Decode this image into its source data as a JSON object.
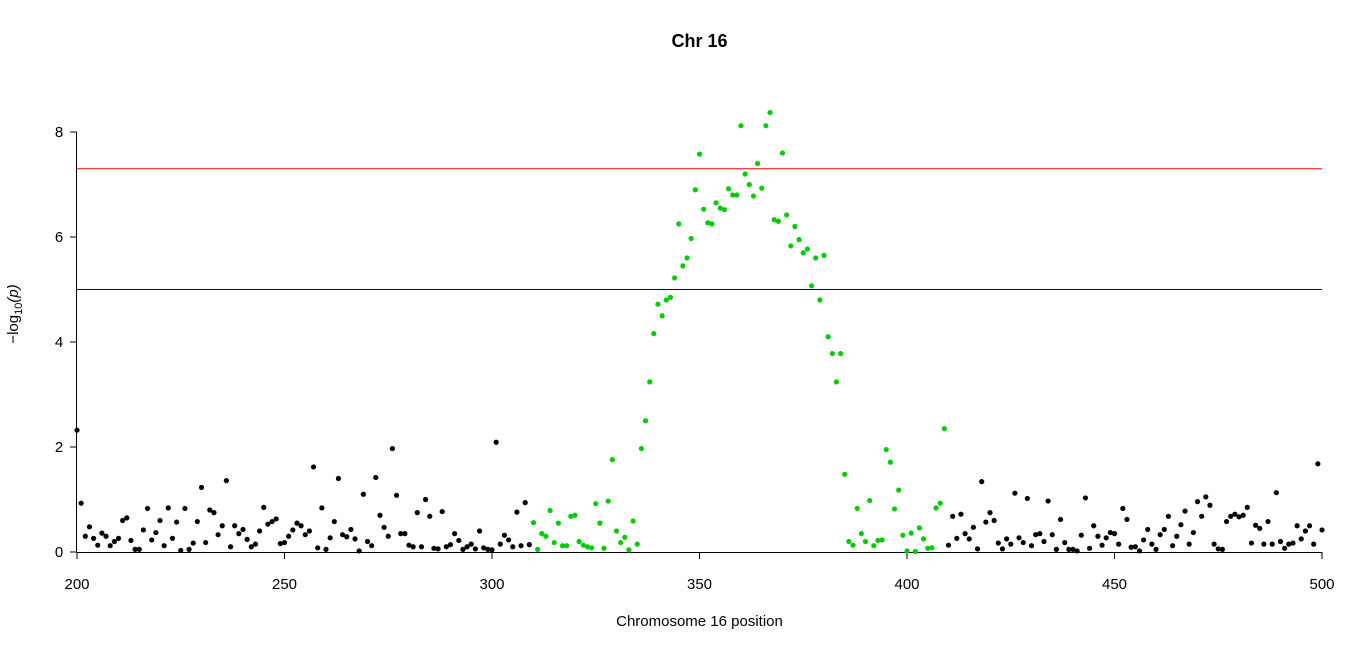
{
  "chart_data": {
    "type": "scatter",
    "title": "Chr 16",
    "xlabel": "Chromosome 16 position",
    "ylabel_main": "−log",
    "ylabel_sub": "10",
    "ylabel_tail": "(p)",
    "xlim": [
      200,
      500
    ],
    "ylim": [
      0,
      8
    ],
    "x_ticks": [
      200,
      250,
      300,
      350,
      400,
      450,
      500
    ],
    "y_ticks": [
      0,
      2,
      4,
      6,
      8
    ],
    "grid": false,
    "threshold_lines": [
      {
        "value": 7.3,
        "color": "#ff0000"
      },
      {
        "value": 5.0,
        "color": "#000080"
      }
    ],
    "colors": {
      "background_point": "#000000",
      "highlight_point": "#00cc00"
    },
    "series": [
      {
        "color": "#000000",
        "points": [
          [
            200,
            2.32
          ],
          [
            201,
            0.93
          ],
          [
            202,
            0.3
          ],
          [
            203,
            0.48
          ],
          [
            204,
            0.26
          ],
          [
            205,
            0.13
          ],
          [
            206,
            0.36
          ],
          [
            207,
            0.3
          ],
          [
            208,
            0.12
          ],
          [
            209,
            0.2
          ],
          [
            210,
            0.26
          ],
          [
            211,
            0.6
          ],
          [
            212,
            0.65
          ],
          [
            213,
            0.22
          ],
          [
            214,
            0.05
          ],
          [
            215,
            0.05
          ],
          [
            216,
            0.42
          ],
          [
            217,
            0.83
          ],
          [
            218,
            0.23
          ],
          [
            219,
            0.37
          ],
          [
            220,
            0.6
          ],
          [
            221,
            0.12
          ],
          [
            222,
            0.84
          ],
          [
            223,
            0.26
          ],
          [
            224,
            0.57
          ],
          [
            225,
            0.03
          ],
          [
            226,
            0.83
          ],
          [
            227,
            0.05
          ],
          [
            228,
            0.17
          ],
          [
            229,
            0.58
          ],
          [
            230,
            1.23
          ],
          [
            231,
            0.18
          ],
          [
            232,
            0.8
          ],
          [
            233,
            0.75
          ],
          [
            234,
            0.33
          ],
          [
            235,
            0.5
          ],
          [
            236,
            1.36
          ],
          [
            237,
            0.1
          ],
          [
            238,
            0.5
          ],
          [
            239,
            0.35
          ],
          [
            240,
            0.43
          ],
          [
            241,
            0.24
          ],
          [
            242,
            0.1
          ],
          [
            243,
            0.15
          ],
          [
            244,
            0.4
          ],
          [
            245,
            0.85
          ],
          [
            246,
            0.53
          ],
          [
            247,
            0.58
          ],
          [
            248,
            0.63
          ],
          [
            249,
            0.16
          ],
          [
            250,
            0.18
          ],
          [
            251,
            0.3
          ],
          [
            252,
            0.42
          ],
          [
            253,
            0.55
          ],
          [
            254,
            0.5
          ],
          [
            255,
            0.33
          ],
          [
            256,
            0.4
          ],
          [
            257,
            1.62
          ],
          [
            258,
            0.08
          ],
          [
            259,
            0.84
          ],
          [
            260,
            0.05
          ],
          [
            261,
            0.27
          ],
          [
            262,
            0.58
          ],
          [
            263,
            1.4
          ],
          [
            264,
            0.33
          ],
          [
            265,
            0.29
          ],
          [
            266,
            0.43
          ],
          [
            267,
            0.25
          ],
          [
            268,
            0.02
          ],
          [
            269,
            1.1
          ],
          [
            270,
            0.2
          ],
          [
            271,
            0.12
          ],
          [
            272,
            1.42
          ],
          [
            273,
            0.7
          ],
          [
            274,
            0.47
          ],
          [
            275,
            0.3
          ],
          [
            276,
            1.97
          ],
          [
            277,
            1.08
          ],
          [
            278,
            0.35
          ],
          [
            279,
            0.35
          ],
          [
            280,
            0.13
          ],
          [
            281,
            0.1
          ],
          [
            282,
            0.75
          ],
          [
            283,
            0.1
          ],
          [
            284,
            1.0
          ],
          [
            285,
            0.68
          ],
          [
            286,
            0.07
          ],
          [
            287,
            0.06
          ],
          [
            288,
            0.77
          ],
          [
            289,
            0.1
          ],
          [
            290,
            0.14
          ],
          [
            291,
            0.35
          ],
          [
            292,
            0.22
          ],
          [
            293,
            0.05
          ],
          [
            294,
            0.1
          ],
          [
            295,
            0.15
          ],
          [
            296,
            0.06
          ],
          [
            297,
            0.4
          ],
          [
            298,
            0.08
          ],
          [
            299,
            0.05
          ],
          [
            300,
            0.04
          ],
          [
            301,
            2.09
          ],
          [
            302,
            0.15
          ],
          [
            303,
            0.32
          ],
          [
            304,
            0.23
          ],
          [
            305,
            0.1
          ],
          [
            306,
            0.76
          ],
          [
            307,
            0.12
          ],
          [
            308,
            0.94
          ],
          [
            309,
            0.14
          ],
          [
            410,
            0.13
          ],
          [
            411,
            0.68
          ],
          [
            412,
            0.26
          ],
          [
            413,
            0.72
          ],
          [
            414,
            0.35
          ],
          [
            415,
            0.25
          ],
          [
            416,
            0.47
          ],
          [
            417,
            0.06
          ],
          [
            418,
            1.34
          ],
          [
            419,
            0.57
          ],
          [
            420,
            0.75
          ],
          [
            421,
            0.6
          ],
          [
            422,
            0.17
          ],
          [
            423,
            0.06
          ],
          [
            424,
            0.25
          ],
          [
            425,
            0.15
          ],
          [
            426,
            1.12
          ],
          [
            427,
            0.27
          ],
          [
            428,
            0.18
          ],
          [
            429,
            1.02
          ],
          [
            430,
            0.12
          ],
          [
            431,
            0.33
          ],
          [
            432,
            0.35
          ],
          [
            433,
            0.2
          ],
          [
            434,
            0.97
          ],
          [
            435,
            0.33
          ],
          [
            436,
            0.05
          ],
          [
            437,
            0.62
          ],
          [
            438,
            0.18
          ],
          [
            439,
            0.05
          ],
          [
            440,
            0.05
          ],
          [
            441,
            0.02
          ],
          [
            442,
            0.32
          ],
          [
            443,
            1.03
          ],
          [
            444,
            0.07
          ],
          [
            445,
            0.5
          ],
          [
            446,
            0.3
          ],
          [
            447,
            0.13
          ],
          [
            448,
            0.27
          ],
          [
            449,
            0.37
          ],
          [
            450,
            0.35
          ],
          [
            451,
            0.15
          ],
          [
            452,
            0.83
          ],
          [
            453,
            0.62
          ],
          [
            454,
            0.09
          ],
          [
            455,
            0.1
          ],
          [
            456,
            0.02
          ],
          [
            457,
            0.23
          ],
          [
            458,
            0.43
          ],
          [
            459,
            0.15
          ],
          [
            460,
            0.05
          ],
          [
            461,
            0.33
          ],
          [
            462,
            0.43
          ],
          [
            463,
            0.68
          ],
          [
            464,
            0.12
          ],
          [
            465,
            0.3
          ],
          [
            466,
            0.52
          ],
          [
            467,
            0.78
          ],
          [
            468,
            0.15
          ],
          [
            469,
            0.37
          ],
          [
            470,
            0.96
          ],
          [
            471,
            0.68
          ],
          [
            472,
            1.05
          ],
          [
            473,
            0.89
          ],
          [
            474,
            0.15
          ],
          [
            475,
            0.06
          ],
          [
            476,
            0.05
          ],
          [
            477,
            0.58
          ],
          [
            478,
            0.68
          ],
          [
            479,
            0.72
          ],
          [
            480,
            0.67
          ],
          [
            481,
            0.7
          ],
          [
            482,
            0.85
          ],
          [
            483,
            0.17
          ],
          [
            484,
            0.51
          ],
          [
            485,
            0.45
          ],
          [
            486,
            0.15
          ],
          [
            487,
            0.58
          ],
          [
            488,
            0.15
          ],
          [
            489,
            1.13
          ],
          [
            490,
            0.2
          ],
          [
            491,
            0.07
          ],
          [
            492,
            0.15
          ],
          [
            493,
            0.17
          ],
          [
            494,
            0.5
          ],
          [
            495,
            0.25
          ],
          [
            496,
            0.4
          ],
          [
            497,
            0.5
          ],
          [
            498,
            0.15
          ],
          [
            499,
            1.68
          ],
          [
            500,
            0.42
          ]
        ]
      },
      {
        "color": "#00cc00",
        "points": [
          [
            310,
            0.56
          ],
          [
            311,
            0.05
          ],
          [
            312,
            0.35
          ],
          [
            313,
            0.3
          ],
          [
            314,
            0.79
          ],
          [
            315,
            0.18
          ],
          [
            316,
            0.55
          ],
          [
            317,
            0.12
          ],
          [
            318,
            0.12
          ],
          [
            319,
            0.68
          ],
          [
            320,
            0.7
          ],
          [
            321,
            0.2
          ],
          [
            322,
            0.13
          ],
          [
            323,
            0.1
          ],
          [
            324,
            0.08
          ],
          [
            325,
            0.92
          ],
          [
            326,
            0.55
          ],
          [
            327,
            0.07
          ],
          [
            328,
            0.97
          ],
          [
            329,
            1.76
          ],
          [
            330,
            0.4
          ],
          [
            331,
            0.18
          ],
          [
            332,
            0.28
          ],
          [
            333,
            0.04
          ],
          [
            334,
            0.59
          ],
          [
            335,
            0.15
          ],
          [
            336,
            1.97
          ],
          [
            337,
            2.5
          ],
          [
            338,
            3.24
          ],
          [
            339,
            4.16
          ],
          [
            340,
            4.72
          ],
          [
            341,
            4.5
          ],
          [
            342,
            4.8
          ],
          [
            343,
            4.85
          ],
          [
            344,
            5.22
          ],
          [
            345,
            6.25
          ],
          [
            346,
            5.45
          ],
          [
            347,
            5.6
          ],
          [
            348,
            5.97
          ],
          [
            349,
            6.9
          ],
          [
            350,
            7.58
          ],
          [
            351,
            6.53
          ],
          [
            352,
            6.27
          ],
          [
            353,
            6.25
          ],
          [
            354,
            6.65
          ],
          [
            355,
            6.55
          ],
          [
            356,
            6.52
          ],
          [
            357,
            6.92
          ],
          [
            358,
            6.8
          ],
          [
            359,
            6.8
          ],
          [
            360,
            8.12
          ],
          [
            361,
            7.2
          ],
          [
            362,
            7.0
          ],
          [
            363,
            6.78
          ],
          [
            364,
            7.4
          ],
          [
            365,
            6.93
          ],
          [
            366,
            8.12
          ],
          [
            367,
            8.37
          ],
          [
            368,
            6.33
          ],
          [
            369,
            6.3
          ],
          [
            370,
            7.6
          ],
          [
            371,
            6.42
          ],
          [
            372,
            5.83
          ],
          [
            373,
            6.2
          ],
          [
            374,
            5.95
          ],
          [
            375,
            5.7
          ],
          [
            376,
            5.77
          ],
          [
            377,
            5.07
          ],
          [
            378,
            5.6
          ],
          [
            379,
            4.8
          ],
          [
            380,
            5.65
          ],
          [
            381,
            4.1
          ],
          [
            382,
            3.78
          ],
          [
            383,
            3.24
          ],
          [
            384,
            3.78
          ],
          [
            385,
            1.48
          ],
          [
            386,
            0.2
          ],
          [
            387,
            0.13
          ],
          [
            388,
            0.83
          ],
          [
            389,
            0.35
          ],
          [
            390,
            0.2
          ],
          [
            391,
            0.98
          ],
          [
            392,
            0.12
          ],
          [
            393,
            0.22
          ],
          [
            394,
            0.23
          ],
          [
            395,
            1.95
          ],
          [
            396,
            1.71
          ],
          [
            397,
            0.82
          ],
          [
            398,
            1.18
          ],
          [
            399,
            0.32
          ],
          [
            400,
            0.02
          ],
          [
            401,
            0.36
          ],
          [
            402,
            0.01
          ],
          [
            403,
            0.46
          ],
          [
            404,
            0.25
          ],
          [
            405,
            0.07
          ],
          [
            406,
            0.08
          ],
          [
            407,
            0.84
          ],
          [
            408,
            0.93
          ],
          [
            409,
            2.35
          ]
        ]
      }
    ]
  }
}
